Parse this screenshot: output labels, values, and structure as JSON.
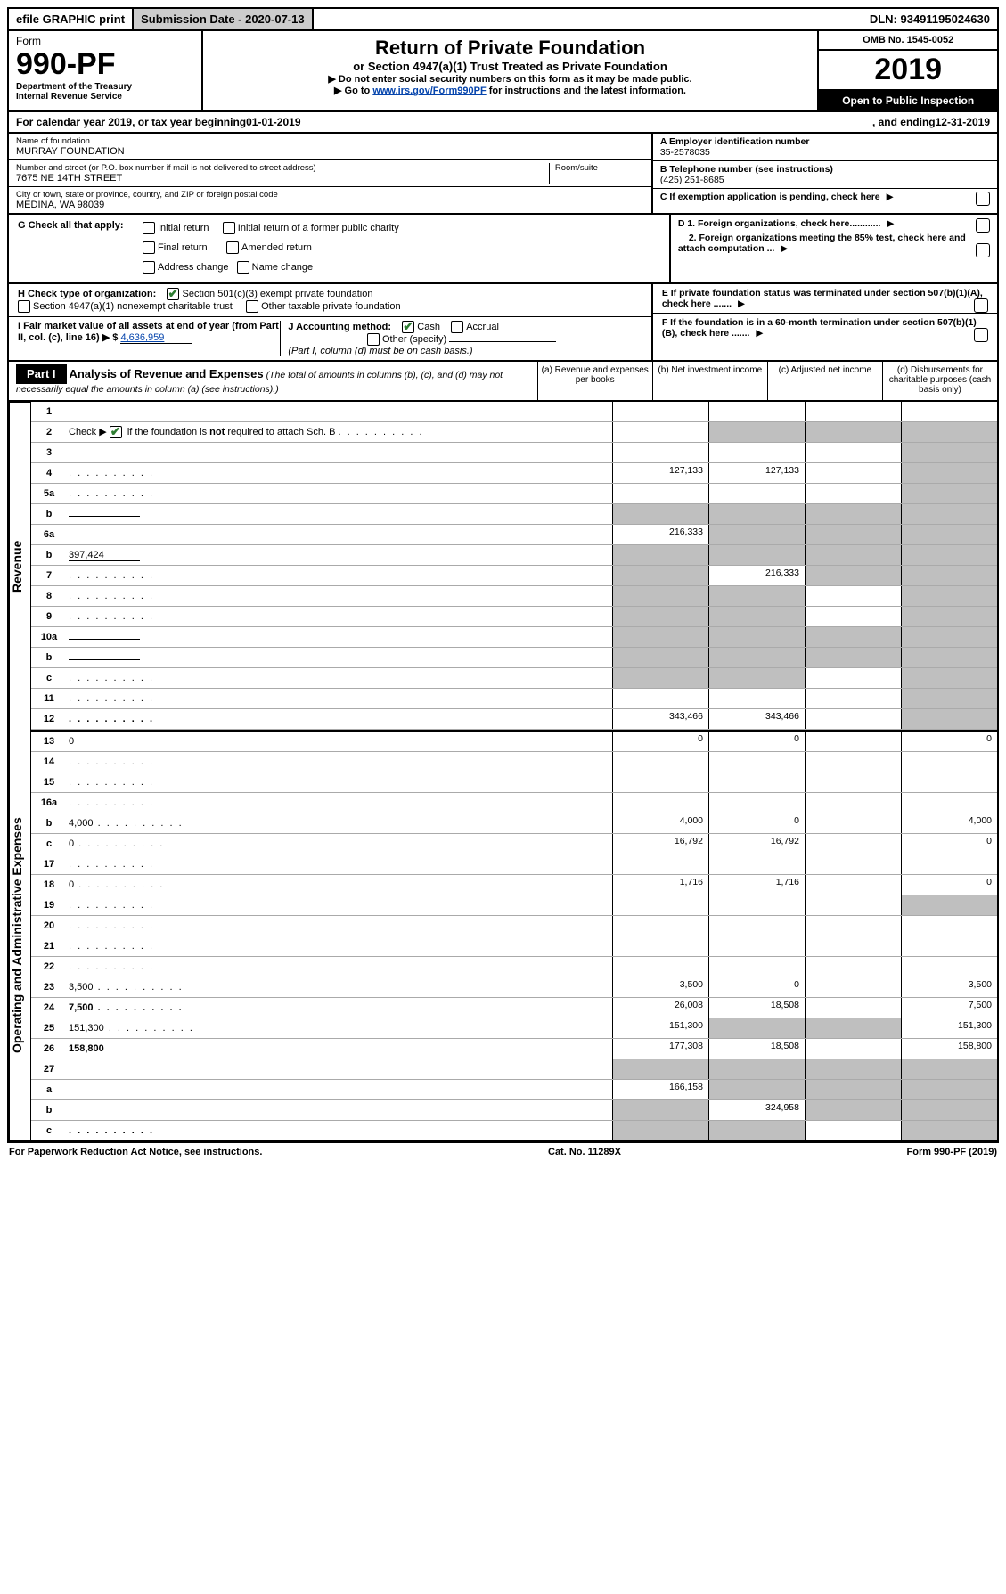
{
  "topbar": {
    "efile": "efile GRAPHIC print",
    "sub_date_label": "Submission Date - 2020-07-13",
    "dln": "DLN: 93491195024630"
  },
  "header": {
    "form_label": "Form",
    "form_number": "990-PF",
    "dept1": "Department of the Treasury",
    "dept2": "Internal Revenue Service",
    "title": "Return of Private Foundation",
    "subtitle": "or Section 4947(a)(1) Trust Treated as Private Foundation",
    "instr1": "▶ Do not enter social security numbers on this form as it may be made public.",
    "instr2_pre": "▶ Go to ",
    "instr2_link": "www.irs.gov/Form990PF",
    "instr2_post": " for instructions and the latest information.",
    "omb": "OMB No. 1545-0052",
    "year": "2019",
    "open": "Open to Public Inspection"
  },
  "calyear": {
    "pre": "For calendar year 2019, or tax year beginning ",
    "begin": "01-01-2019",
    "mid": " , and ending ",
    "end": "12-31-2019"
  },
  "info": {
    "name_label": "Name of foundation",
    "name": "MURRAY FOUNDATION",
    "addr_label": "Number and street (or P.O. box number if mail is not delivered to street address)",
    "addr": "7675 NE 14TH STREET",
    "room_label": "Room/suite",
    "city_label": "City or town, state or province, country, and ZIP or foreign postal code",
    "city": "MEDINA, WA  98039",
    "a_label": "A Employer identification number",
    "a_val": "35-2578035",
    "b_label": "B Telephone number (see instructions)",
    "b_val": "(425) 251-8685",
    "c_label": "C If exemption application is pending, check here"
  },
  "g": {
    "label": "G Check all that apply:",
    "initial": "Initial return",
    "initial_former": "Initial return of a former public charity",
    "final": "Final return",
    "amended": "Amended return",
    "addr_change": "Address change",
    "name_change": "Name change"
  },
  "d": {
    "d1": "D 1. Foreign organizations, check here............",
    "d2": "2. Foreign organizations meeting the 85% test, check here and attach computation ..."
  },
  "h": {
    "label": "H Check type of organization:",
    "h1": "Section 501(c)(3) exempt private foundation",
    "h2": "Section 4947(a)(1) nonexempt charitable trust",
    "h3": "Other taxable private foundation"
  },
  "e": {
    "text": "E If private foundation status was terminated under section 507(b)(1)(A), check here ......."
  },
  "i": {
    "text": "I Fair market value of all assets at end of year (from Part II, col. (c), line 16)  ▶ $",
    "val": "4,636,959"
  },
  "j": {
    "label": "J Accounting method:",
    "cash": "Cash",
    "accrual": "Accrual",
    "other": "Other (specify)",
    "note": "(Part I, column (d) must be on cash basis.)"
  },
  "f": {
    "text": "F If the foundation is in a 60-month termination under section 507(b)(1)(B), check here ......."
  },
  "part1": {
    "label": "Part I",
    "title": "Analysis of Revenue and Expenses",
    "sub": " (The total of amounts in columns (b), (c), and (d) may not necessarily equal the amounts in column (a) (see instructions).)",
    "col_a": "(a)   Revenue and expenses per books",
    "col_b": "(b)  Net investment income",
    "col_c": "(c)  Adjusted net income",
    "col_d": "(d)  Disbursements for charitable purposes (cash basis only)"
  },
  "side": {
    "revenue": "Revenue",
    "expenses": "Operating and Administrative Expenses"
  },
  "rows": [
    {
      "n": "1",
      "d": "",
      "a": "",
      "b": "",
      "c": "",
      "sa": false,
      "sb": false,
      "sc": false,
      "sd": false,
      "section": "rev"
    },
    {
      "n": "2",
      "d": "",
      "a": "",
      "b": "",
      "c": "",
      "sa": false,
      "sb": true,
      "sc": true,
      "sd": true,
      "section": "rev",
      "special": "checkline"
    },
    {
      "n": "3",
      "d": "",
      "a": "",
      "b": "",
      "c": "",
      "sa": false,
      "sb": false,
      "sc": false,
      "sd": true,
      "section": "rev"
    },
    {
      "n": "4",
      "d": "",
      "a": "127,133",
      "b": "127,133",
      "c": "",
      "sa": false,
      "sb": false,
      "sc": false,
      "sd": true,
      "section": "rev",
      "dots": true
    },
    {
      "n": "5a",
      "d": "",
      "a": "",
      "b": "",
      "c": "",
      "sa": false,
      "sb": false,
      "sc": false,
      "sd": true,
      "section": "rev",
      "dots": true
    },
    {
      "n": "b",
      "d": "",
      "a": "",
      "b": "",
      "c": "",
      "sa": true,
      "sb": true,
      "sc": true,
      "sd": true,
      "section": "rev",
      "inline": true
    },
    {
      "n": "6a",
      "d": "",
      "a": "216,333",
      "b": "",
      "c": "",
      "sa": false,
      "sb": true,
      "sc": true,
      "sd": true,
      "section": "rev"
    },
    {
      "n": "b",
      "d": "",
      "a": "",
      "b": "",
      "c": "",
      "sa": true,
      "sb": true,
      "sc": true,
      "sd": true,
      "section": "rev",
      "inline": true,
      "inlineval": "397,424"
    },
    {
      "n": "7",
      "d": "",
      "a": "",
      "b": "216,333",
      "c": "",
      "sa": true,
      "sb": false,
      "sc": true,
      "sd": true,
      "section": "rev",
      "dots": true
    },
    {
      "n": "8",
      "d": "",
      "a": "",
      "b": "",
      "c": "",
      "sa": true,
      "sb": true,
      "sc": false,
      "sd": true,
      "section": "rev",
      "dots": true
    },
    {
      "n": "9",
      "d": "",
      "a": "",
      "b": "",
      "c": "",
      "sa": true,
      "sb": true,
      "sc": false,
      "sd": true,
      "section": "rev",
      "dots": true
    },
    {
      "n": "10a",
      "d": "",
      "a": "",
      "b": "",
      "c": "",
      "sa": true,
      "sb": true,
      "sc": true,
      "sd": true,
      "section": "rev",
      "inline": true
    },
    {
      "n": "b",
      "d": "",
      "a": "",
      "b": "",
      "c": "",
      "sa": true,
      "sb": true,
      "sc": true,
      "sd": true,
      "section": "rev",
      "inline": true,
      "dots": true
    },
    {
      "n": "c",
      "d": "",
      "a": "",
      "b": "",
      "c": "",
      "sa": true,
      "sb": true,
      "sc": false,
      "sd": true,
      "section": "rev",
      "dots": true
    },
    {
      "n": "11",
      "d": "",
      "a": "",
      "b": "",
      "c": "",
      "sa": false,
      "sb": false,
      "sc": false,
      "sd": true,
      "section": "rev",
      "dots": true
    },
    {
      "n": "12",
      "d": "",
      "a": "343,466",
      "b": "343,466",
      "c": "",
      "sa": false,
      "sb": false,
      "sc": false,
      "sd": true,
      "section": "rev",
      "bold": true,
      "dots": true
    },
    {
      "n": "13",
      "d": "0",
      "a": "0",
      "b": "0",
      "c": "",
      "sa": false,
      "sb": false,
      "sc": false,
      "sd": false,
      "section": "exp"
    },
    {
      "n": "14",
      "d": "",
      "a": "",
      "b": "",
      "c": "",
      "sa": false,
      "sb": false,
      "sc": false,
      "sd": false,
      "section": "exp",
      "dots": true
    },
    {
      "n": "15",
      "d": "",
      "a": "",
      "b": "",
      "c": "",
      "sa": false,
      "sb": false,
      "sc": false,
      "sd": false,
      "section": "exp",
      "dots": true
    },
    {
      "n": "16a",
      "d": "",
      "a": "",
      "b": "",
      "c": "",
      "sa": false,
      "sb": false,
      "sc": false,
      "sd": false,
      "section": "exp",
      "dots": true
    },
    {
      "n": "b",
      "d": "4,000",
      "a": "4,000",
      "b": "0",
      "c": "",
      "sa": false,
      "sb": false,
      "sc": false,
      "sd": false,
      "section": "exp",
      "dots": true
    },
    {
      "n": "c",
      "d": "0",
      "a": "16,792",
      "b": "16,792",
      "c": "",
      "sa": false,
      "sb": false,
      "sc": false,
      "sd": false,
      "section": "exp",
      "dots": true
    },
    {
      "n": "17",
      "d": "",
      "a": "",
      "b": "",
      "c": "",
      "sa": false,
      "sb": false,
      "sc": false,
      "sd": false,
      "section": "exp",
      "dots": true
    },
    {
      "n": "18",
      "d": "0",
      "a": "1,716",
      "b": "1,716",
      "c": "",
      "sa": false,
      "sb": false,
      "sc": false,
      "sd": false,
      "section": "exp",
      "dots": true
    },
    {
      "n": "19",
      "d": "",
      "a": "",
      "b": "",
      "c": "",
      "sa": false,
      "sb": false,
      "sc": false,
      "sd": true,
      "section": "exp",
      "dots": true
    },
    {
      "n": "20",
      "d": "",
      "a": "",
      "b": "",
      "c": "",
      "sa": false,
      "sb": false,
      "sc": false,
      "sd": false,
      "section": "exp",
      "dots": true
    },
    {
      "n": "21",
      "d": "",
      "a": "",
      "b": "",
      "c": "",
      "sa": false,
      "sb": false,
      "sc": false,
      "sd": false,
      "section": "exp",
      "dots": true
    },
    {
      "n": "22",
      "d": "",
      "a": "",
      "b": "",
      "c": "",
      "sa": false,
      "sb": false,
      "sc": false,
      "sd": false,
      "section": "exp",
      "dots": true
    },
    {
      "n": "23",
      "d": "3,500",
      "a": "3,500",
      "b": "0",
      "c": "",
      "sa": false,
      "sb": false,
      "sc": false,
      "sd": false,
      "section": "exp",
      "dots": true
    },
    {
      "n": "24",
      "d": "7,500",
      "a": "26,008",
      "b": "18,508",
      "c": "",
      "sa": false,
      "sb": false,
      "sc": false,
      "sd": false,
      "section": "exp",
      "bold": true,
      "dots": true
    },
    {
      "n": "25",
      "d": "151,300",
      "a": "151,300",
      "b": "",
      "c": "",
      "sa": false,
      "sb": true,
      "sc": true,
      "sd": false,
      "section": "exp",
      "dots": true
    },
    {
      "n": "26",
      "d": "158,800",
      "a": "177,308",
      "b": "18,508",
      "c": "",
      "sa": false,
      "sb": false,
      "sc": false,
      "sd": false,
      "section": "exp",
      "bold": true
    },
    {
      "n": "27",
      "d": "",
      "a": "",
      "b": "",
      "c": "",
      "sa": true,
      "sb": true,
      "sc": true,
      "sd": true,
      "section": "exp"
    },
    {
      "n": "a",
      "d": "",
      "a": "166,158",
      "b": "",
      "c": "",
      "sa": false,
      "sb": true,
      "sc": true,
      "sd": true,
      "section": "exp",
      "bold": true
    },
    {
      "n": "b",
      "d": "",
      "a": "",
      "b": "324,958",
      "c": "",
      "sa": true,
      "sb": false,
      "sc": true,
      "sd": true,
      "section": "exp",
      "bold": true
    },
    {
      "n": "c",
      "d": "",
      "a": "",
      "b": "",
      "c": "",
      "sa": true,
      "sb": true,
      "sc": false,
      "sd": true,
      "section": "exp",
      "bold": true,
      "dots": true
    }
  ],
  "footer": {
    "left": "For Paperwork Reduction Act Notice, see instructions.",
    "mid": "Cat. No. 11289X",
    "right": "Form 990-PF (2019)"
  }
}
